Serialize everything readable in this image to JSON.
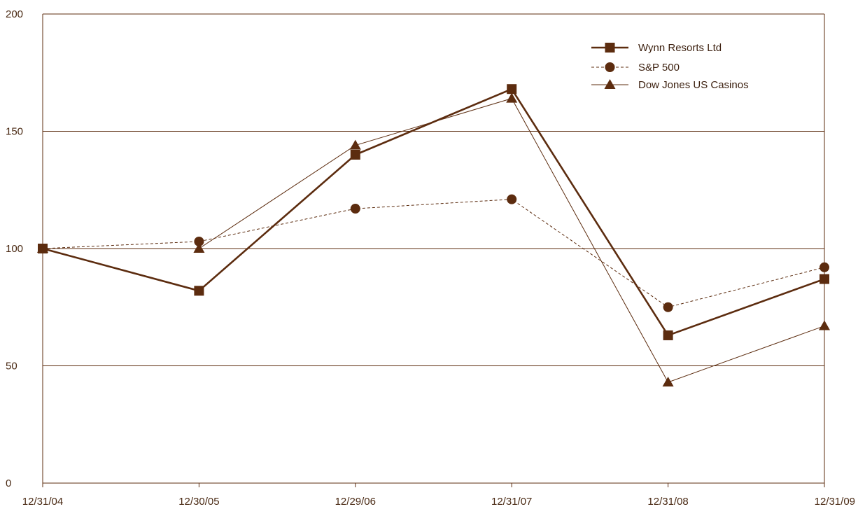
{
  "chart_data": {
    "type": "line",
    "categories": [
      "12/31/04",
      "12/30/05",
      "12/29/06",
      "12/31/07",
      "12/31/08",
      "12/31/09"
    ],
    "ylim": [
      0,
      200
    ],
    "yticks": [
      0,
      50,
      100,
      150,
      200
    ],
    "grid": "horizontal",
    "legend_position": "top-right",
    "series": [
      {
        "name": "Wynn Resorts Ltd",
        "marker": "square",
        "style": "solid-thick",
        "values": [
          100,
          82,
          140,
          168,
          63,
          87
        ]
      },
      {
        "name": "S&P 500",
        "marker": "circle",
        "style": "dashed",
        "values": [
          100,
          103,
          117,
          121,
          75,
          92
        ]
      },
      {
        "name": "Dow Jones US Casinos",
        "marker": "triangle",
        "style": "solid-thin",
        "values": [
          100,
          100,
          144,
          164,
          43,
          67
        ]
      }
    ],
    "colors": {
      "line": "#5c2c0f",
      "grid": "#5c2c0f",
      "text": "#4a2a14"
    }
  }
}
